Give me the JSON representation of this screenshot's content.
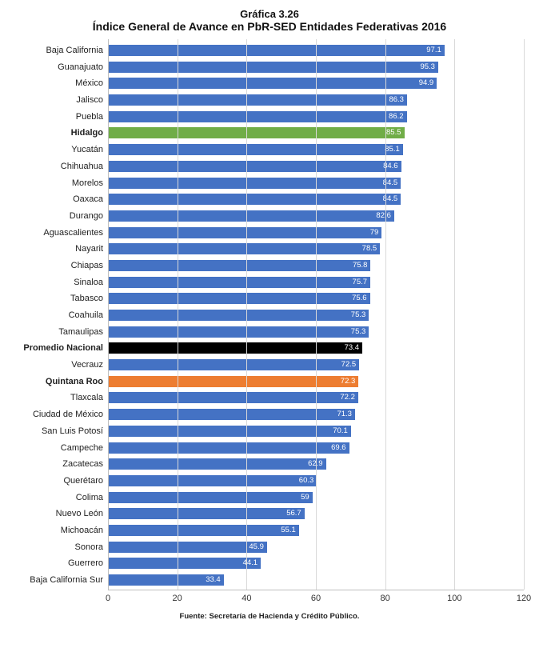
{
  "chart": {
    "type": "bar-horizontal",
    "fig_number": "Gráfica 3.26",
    "title": "Índice General de Avance en PbR-SED Entidades Federativas 2016",
    "source": "Fuente: Secretaría de Hacienda y Crédito Público.",
    "x_axis": {
      "min": 0,
      "max": 120,
      "tick_step": 20,
      "ticks": [
        0,
        20,
        40,
        60,
        80,
        100,
        120
      ]
    },
    "background_color": "#ffffff",
    "grid_color": "#d9d9d9",
    "label_fontsize": 11,
    "title_fontsize": 14,
    "value_label_color": "#ffffff",
    "default_bar_color": "#4472c4",
    "bar_widths_rel": 0.68,
    "categories": [
      "Baja California",
      "Guanajuato",
      "México",
      "Jalisco",
      "Puebla",
      "Hidalgo",
      "Yucatán",
      "Chihuahua",
      "Morelos",
      "Oaxaca",
      "Durango",
      "Aguascalientes",
      "Nayarit",
      "Chiapas",
      "Sinaloa",
      "Tabasco",
      "Coahuila",
      "Tamaulipas",
      "Promedio Nacional",
      "Vecrauz",
      "Quintana Roo",
      "Tlaxcala",
      "Ciudad de México",
      "San Luis Potosí",
      "Campeche",
      "Zacatecas",
      "Querétaro",
      "Colima",
      "Nuevo León",
      "Michoacán",
      "Sonora",
      "Guerrero",
      "Baja California Sur"
    ],
    "values": [
      97.1,
      95.3,
      94.9,
      86.3,
      86.2,
      85.5,
      85.1,
      84.6,
      84.5,
      84.5,
      82.6,
      79,
      78.5,
      75.8,
      75.7,
      75.6,
      75.3,
      75.3,
      73.4,
      72.5,
      72.3,
      72.2,
      71.3,
      70.1,
      69.6,
      62.9,
      60.3,
      59,
      56.7,
      55.1,
      45.9,
      44.1,
      33.4
    ],
    "value_labels": [
      "97.1",
      "95.3",
      "94.9",
      "86.3",
      "86.2",
      "85.5",
      "85.1",
      "84.6",
      "84.5",
      "84.5",
      "82.6",
      "79",
      "78.5",
      "75.8",
      "75.7",
      "75.6",
      "75.3",
      "75.3",
      "73.4",
      "72.5",
      "72.3",
      "72.2",
      "71.3",
      "70.1",
      "69.6",
      "62.9",
      "60.3",
      "59",
      "56.7",
      "55.1",
      "45.9",
      "44.1",
      "33.4"
    ],
    "colors": [
      "#4472c4",
      "#4472c4",
      "#4472c4",
      "#4472c4",
      "#4472c4",
      "#70ad47",
      "#4472c4",
      "#4472c4",
      "#4472c4",
      "#4472c4",
      "#4472c4",
      "#4472c4",
      "#4472c4",
      "#4472c4",
      "#4472c4",
      "#4472c4",
      "#4472c4",
      "#4472c4",
      "#000000",
      "#4472c4",
      "#ed7d31",
      "#4472c4",
      "#4472c4",
      "#4472c4",
      "#4472c4",
      "#4472c4",
      "#4472c4",
      "#4472c4",
      "#4472c4",
      "#4472c4",
      "#4472c4",
      "#4472c4",
      "#4472c4"
    ],
    "bold_labels": [
      false,
      false,
      false,
      false,
      false,
      true,
      false,
      false,
      false,
      false,
      false,
      false,
      false,
      false,
      false,
      false,
      false,
      false,
      true,
      false,
      true,
      false,
      false,
      false,
      false,
      false,
      false,
      false,
      false,
      false,
      false,
      false,
      false
    ]
  }
}
